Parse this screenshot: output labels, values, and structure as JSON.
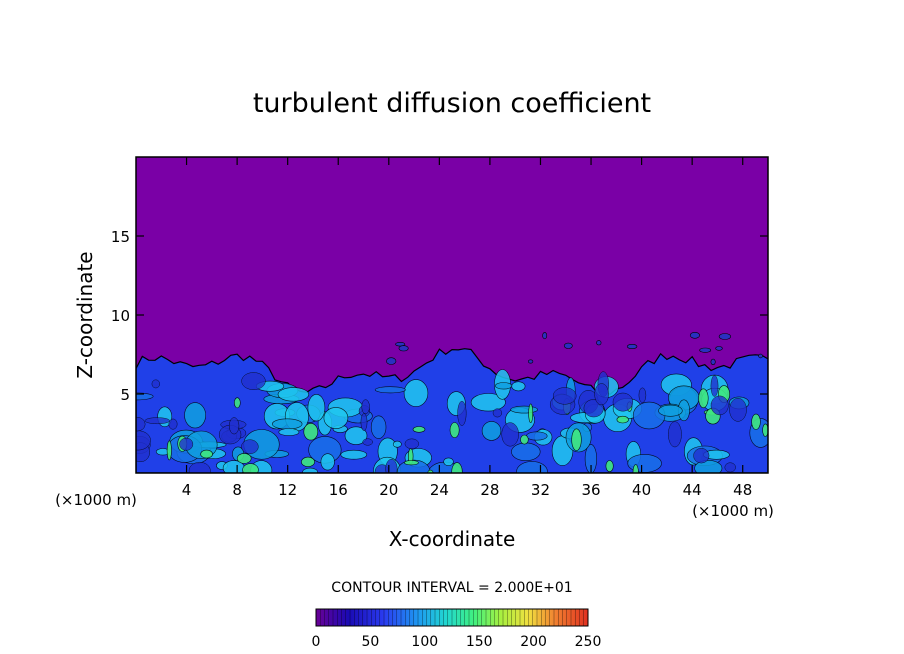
{
  "chart_data": {
    "type": "heatmap",
    "title": "turbulent diffusion coefficient",
    "xlabel": "X-coordinate",
    "ylabel": "Z-coordinate",
    "x_unit_label": "(×1000 m)",
    "x_unit_label_right": "(×1000 m)",
    "x_ticks": [
      4,
      8,
      12,
      16,
      20,
      24,
      28,
      32,
      36,
      40,
      44,
      48
    ],
    "y_ticks": [
      5,
      10,
      15
    ],
    "xlim": [
      0,
      50
    ],
    "ylim": [
      0,
      20
    ],
    "contour_interval_text": "CONTOUR INTERVAL = 2.000E+01",
    "contour_interval": 20,
    "colorbar": {
      "range": [
        0,
        250
      ],
      "ticks": [
        0,
        50,
        100,
        150,
        200,
        250
      ],
      "colors": [
        "#6a0096",
        "#1a0ab4",
        "#2a3cf0",
        "#1e9cf0",
        "#22d8d0",
        "#40f080",
        "#a8f040",
        "#f0e040",
        "#f08030",
        "#e03020"
      ]
    },
    "background_value": 0,
    "turbulent_layer_top_z_approx": 7,
    "colors": {
      "background_field": "#7a00a6",
      "low": "#2040e8",
      "mid": "#20c8f0",
      "high": "#40e880"
    }
  }
}
